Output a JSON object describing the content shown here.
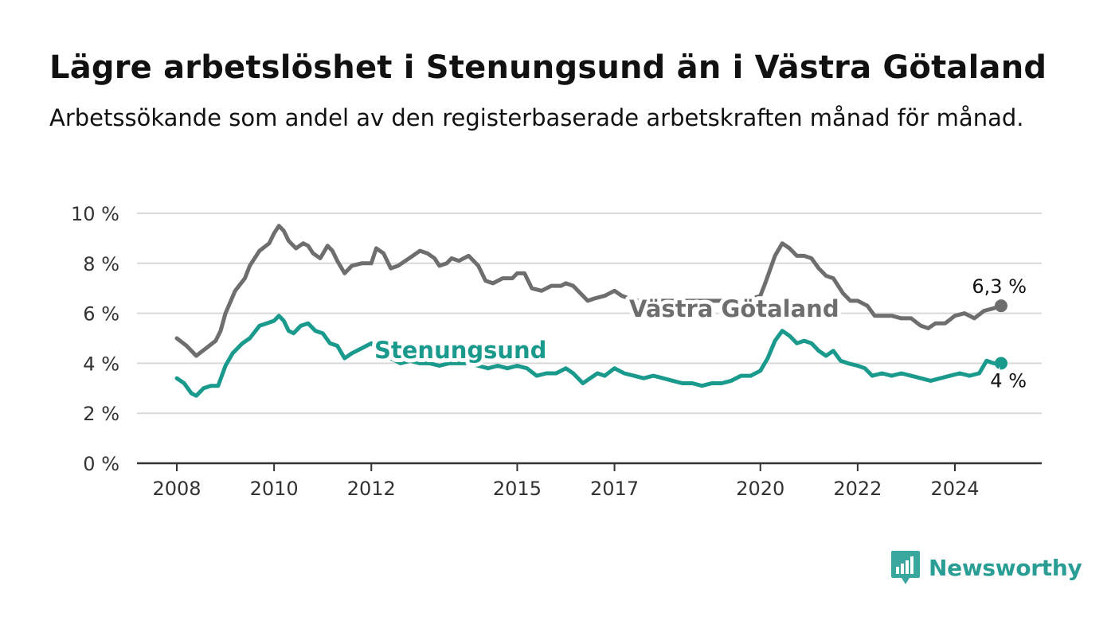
{
  "title": "Lägre arbetslöshet i Stenungsund än i Västra Götaland",
  "subtitle": "Arbetssökande som andel av den registerbaserade arbetskraften månad för månad.",
  "logo": {
    "text": "Newsworthy",
    "icon": "bar-chart-speech-bubble-icon",
    "color": "#3aa79f"
  },
  "chart_data": {
    "type": "line",
    "title": "Lägre arbetslöshet i Stenungsund än i Västra Götaland",
    "ylim": [
      0,
      10
    ],
    "xlim": [
      2008.0,
      2025.6
    ],
    "y_ticks": [
      0,
      2,
      4,
      6,
      8,
      10
    ],
    "y_tick_labels": [
      "0 %",
      "2 %",
      "4 %",
      "6 %",
      "8 %",
      "10 %"
    ],
    "x_ticks": [
      2008,
      2010,
      2012,
      2015,
      2017,
      2020,
      2022,
      2024
    ],
    "x_tick_labels": [
      "2008",
      "2010",
      "2012",
      "2015",
      "2017",
      "2020",
      "2022",
      "2024"
    ],
    "grid": "horizontal",
    "series": [
      {
        "name": "Västra Götaland",
        "color": "#6e6e6e",
        "end_label": "6,3 %",
        "points": [
          [
            2008.0,
            5.0
          ],
          [
            2008.2,
            4.7
          ],
          [
            2008.4,
            4.3
          ],
          [
            2008.6,
            4.6
          ],
          [
            2008.8,
            4.9
          ],
          [
            2008.9,
            5.3
          ],
          [
            2009.0,
            6.0
          ],
          [
            2009.2,
            6.9
          ],
          [
            2009.4,
            7.4
          ],
          [
            2009.5,
            7.9
          ],
          [
            2009.7,
            8.5
          ],
          [
            2009.9,
            8.8
          ],
          [
            2010.0,
            9.2
          ],
          [
            2010.1,
            9.5
          ],
          [
            2010.2,
            9.3
          ],
          [
            2010.3,
            8.9
          ],
          [
            2010.45,
            8.6
          ],
          [
            2010.6,
            8.8
          ],
          [
            2010.7,
            8.7
          ],
          [
            2010.8,
            8.4
          ],
          [
            2010.95,
            8.2
          ],
          [
            2011.1,
            8.7
          ],
          [
            2011.2,
            8.5
          ],
          [
            2011.3,
            8.1
          ],
          [
            2011.45,
            7.6
          ],
          [
            2011.6,
            7.9
          ],
          [
            2011.8,
            8.0
          ],
          [
            2012.0,
            8.0
          ],
          [
            2012.1,
            8.6
          ],
          [
            2012.25,
            8.4
          ],
          [
            2012.4,
            7.8
          ],
          [
            2012.55,
            7.9
          ],
          [
            2012.7,
            8.1
          ],
          [
            2012.85,
            8.3
          ],
          [
            2013.0,
            8.5
          ],
          [
            2013.15,
            8.4
          ],
          [
            2013.3,
            8.2
          ],
          [
            2013.4,
            7.9
          ],
          [
            2013.55,
            8.0
          ],
          [
            2013.65,
            8.2
          ],
          [
            2013.8,
            8.1
          ],
          [
            2014.0,
            8.3
          ],
          [
            2014.2,
            7.9
          ],
          [
            2014.35,
            7.3
          ],
          [
            2014.5,
            7.2
          ],
          [
            2014.7,
            7.4
          ],
          [
            2014.9,
            7.4
          ],
          [
            2015.0,
            7.6
          ],
          [
            2015.15,
            7.6
          ],
          [
            2015.3,
            7.0
          ],
          [
            2015.5,
            6.9
          ],
          [
            2015.7,
            7.1
          ],
          [
            2015.9,
            7.1
          ],
          [
            2016.0,
            7.2
          ],
          [
            2016.15,
            7.1
          ],
          [
            2016.3,
            6.8
          ],
          [
            2016.45,
            6.5
          ],
          [
            2016.6,
            6.6
          ],
          [
            2016.8,
            6.7
          ],
          [
            2017.0,
            6.9
          ],
          [
            2017.15,
            6.7
          ],
          [
            2017.3,
            6.6
          ],
          [
            2017.5,
            6.5
          ],
          [
            2017.7,
            6.5
          ],
          [
            2017.9,
            6.5
          ],
          [
            2018.2,
            6.5
          ],
          [
            2018.5,
            6.5
          ],
          [
            2018.8,
            6.5
          ],
          [
            2019.1,
            6.5
          ],
          [
            2019.4,
            6.5
          ],
          [
            2019.7,
            6.5
          ],
          [
            2020.0,
            6.7
          ],
          [
            2020.1,
            7.2
          ],
          [
            2020.3,
            8.3
          ],
          [
            2020.45,
            8.8
          ],
          [
            2020.6,
            8.6
          ],
          [
            2020.75,
            8.3
          ],
          [
            2020.9,
            8.3
          ],
          [
            2021.05,
            8.2
          ],
          [
            2021.2,
            7.8
          ],
          [
            2021.35,
            7.5
          ],
          [
            2021.5,
            7.4
          ],
          [
            2021.7,
            6.8
          ],
          [
            2021.85,
            6.5
          ],
          [
            2022.0,
            6.5
          ],
          [
            2022.2,
            6.3
          ],
          [
            2022.35,
            5.9
          ],
          [
            2022.5,
            5.9
          ],
          [
            2022.7,
            5.9
          ],
          [
            2022.9,
            5.8
          ],
          [
            2023.1,
            5.8
          ],
          [
            2023.3,
            5.5
          ],
          [
            2023.45,
            5.4
          ],
          [
            2023.6,
            5.6
          ],
          [
            2023.8,
            5.6
          ],
          [
            2024.0,
            5.9
          ],
          [
            2024.2,
            6.0
          ],
          [
            2024.4,
            5.8
          ],
          [
            2024.6,
            6.1
          ],
          [
            2024.8,
            6.2
          ],
          [
            2024.95,
            6.3
          ]
        ]
      },
      {
        "name": "Stenungsund",
        "color": "#1a9a8c",
        "end_label": "4 %",
        "points": [
          [
            2008.0,
            3.4
          ],
          [
            2008.15,
            3.2
          ],
          [
            2008.3,
            2.8
          ],
          [
            2008.4,
            2.7
          ],
          [
            2008.55,
            3.0
          ],
          [
            2008.7,
            3.1
          ],
          [
            2008.85,
            3.1
          ],
          [
            2009.0,
            3.9
          ],
          [
            2009.15,
            4.4
          ],
          [
            2009.35,
            4.8
          ],
          [
            2009.5,
            5.0
          ],
          [
            2009.7,
            5.5
          ],
          [
            2009.85,
            5.6
          ],
          [
            2010.0,
            5.7
          ],
          [
            2010.1,
            5.9
          ],
          [
            2010.2,
            5.7
          ],
          [
            2010.3,
            5.3
          ],
          [
            2010.4,
            5.2
          ],
          [
            2010.55,
            5.5
          ],
          [
            2010.7,
            5.6
          ],
          [
            2010.85,
            5.3
          ],
          [
            2011.0,
            5.2
          ],
          [
            2011.15,
            4.8
          ],
          [
            2011.3,
            4.7
          ],
          [
            2011.45,
            4.2
          ],
          [
            2011.6,
            4.4
          ],
          [
            2011.8,
            4.6
          ],
          [
            2012.0,
            4.8
          ],
          [
            2012.2,
            4.4
          ],
          [
            2012.4,
            4.2
          ],
          [
            2012.6,
            4.0
          ],
          [
            2012.8,
            4.1
          ],
          [
            2013.0,
            4.0
          ],
          [
            2013.2,
            4.0
          ],
          [
            2013.4,
            3.9
          ],
          [
            2013.6,
            4.0
          ],
          [
            2013.8,
            4.0
          ],
          [
            2014.0,
            4.0
          ],
          [
            2014.2,
            3.9
          ],
          [
            2014.4,
            3.8
          ],
          [
            2014.6,
            3.9
          ],
          [
            2014.8,
            3.8
          ],
          [
            2015.0,
            3.9
          ],
          [
            2015.2,
            3.8
          ],
          [
            2015.4,
            3.5
          ],
          [
            2015.6,
            3.6
          ],
          [
            2015.8,
            3.6
          ],
          [
            2016.0,
            3.8
          ],
          [
            2016.15,
            3.6
          ],
          [
            2016.35,
            3.2
          ],
          [
            2016.5,
            3.4
          ],
          [
            2016.65,
            3.6
          ],
          [
            2016.8,
            3.5
          ],
          [
            2017.0,
            3.8
          ],
          [
            2017.2,
            3.6
          ],
          [
            2017.4,
            3.5
          ],
          [
            2017.6,
            3.4
          ],
          [
            2017.8,
            3.5
          ],
          [
            2018.0,
            3.4
          ],
          [
            2018.2,
            3.3
          ],
          [
            2018.4,
            3.2
          ],
          [
            2018.6,
            3.2
          ],
          [
            2018.8,
            3.1
          ],
          [
            2019.0,
            3.2
          ],
          [
            2019.2,
            3.2
          ],
          [
            2019.4,
            3.3
          ],
          [
            2019.6,
            3.5
          ],
          [
            2019.8,
            3.5
          ],
          [
            2020.0,
            3.7
          ],
          [
            2020.15,
            4.2
          ],
          [
            2020.3,
            4.9
          ],
          [
            2020.45,
            5.3
          ],
          [
            2020.6,
            5.1
          ],
          [
            2020.75,
            4.8
          ],
          [
            2020.9,
            4.9
          ],
          [
            2021.05,
            4.8
          ],
          [
            2021.2,
            4.5
          ],
          [
            2021.35,
            4.3
          ],
          [
            2021.5,
            4.5
          ],
          [
            2021.65,
            4.1
          ],
          [
            2021.8,
            4.0
          ],
          [
            2022.0,
            3.9
          ],
          [
            2022.15,
            3.8
          ],
          [
            2022.3,
            3.5
          ],
          [
            2022.5,
            3.6
          ],
          [
            2022.7,
            3.5
          ],
          [
            2022.9,
            3.6
          ],
          [
            2023.1,
            3.5
          ],
          [
            2023.3,
            3.4
          ],
          [
            2023.5,
            3.3
          ],
          [
            2023.7,
            3.4
          ],
          [
            2023.9,
            3.5
          ],
          [
            2024.1,
            3.6
          ],
          [
            2024.3,
            3.5
          ],
          [
            2024.5,
            3.6
          ],
          [
            2024.65,
            4.1
          ],
          [
            2024.8,
            4.0
          ],
          [
            2024.95,
            4.0
          ]
        ]
      }
    ]
  }
}
